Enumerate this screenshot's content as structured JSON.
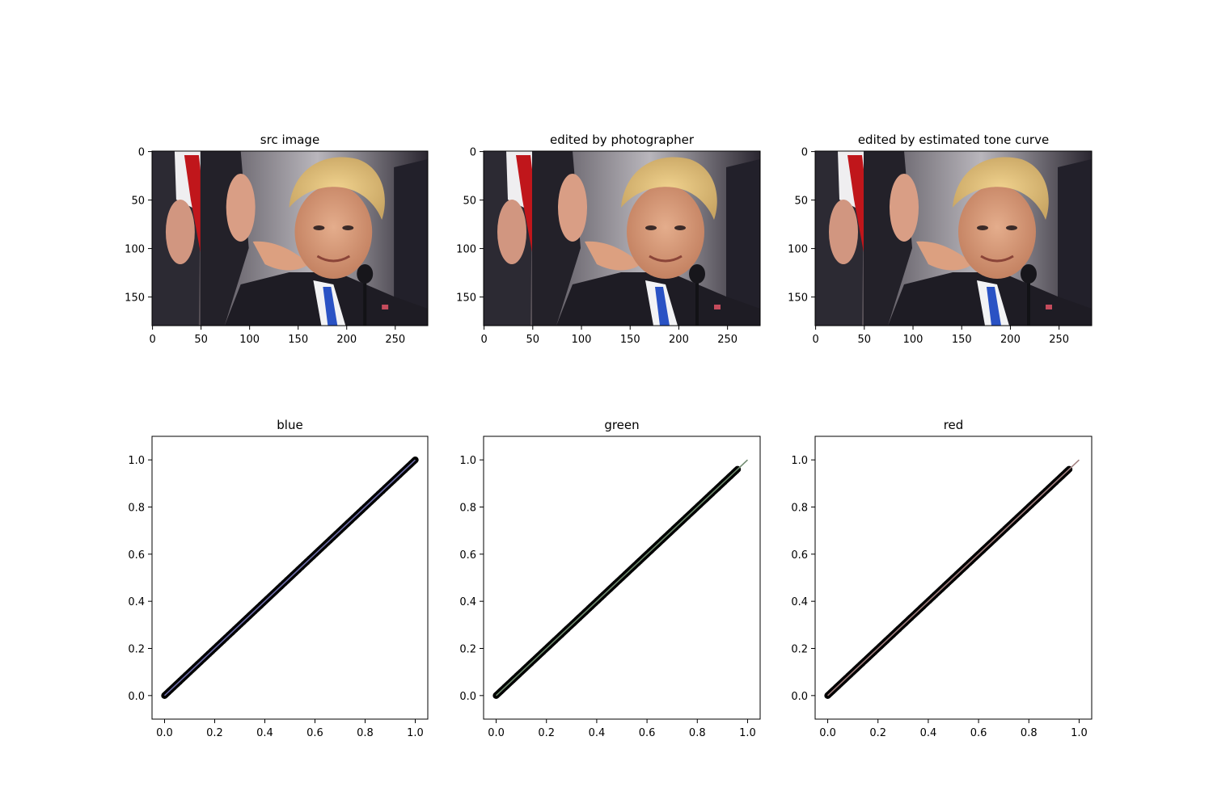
{
  "chart_data": [
    {
      "type": "image",
      "title": "src image",
      "xticks": [
        "0",
        "50",
        "100",
        "150",
        "200",
        "250"
      ],
      "yticks": [
        "0",
        "50",
        "100",
        "150"
      ],
      "xlim": [
        -0.5,
        283.5
      ],
      "ylim": [
        179.5,
        -0.5
      ],
      "content": "photo"
    },
    {
      "type": "image",
      "title": "edited by photographer",
      "xticks": [
        "0",
        "50",
        "100",
        "150",
        "200",
        "250"
      ],
      "yticks": [
        "0",
        "50",
        "100",
        "150"
      ],
      "xlim": [
        -0.5,
        283.5
      ],
      "ylim": [
        179.5,
        -0.5
      ],
      "content": "photo"
    },
    {
      "type": "image",
      "title": "edited by estimated tone curve",
      "xticks": [
        "0",
        "50",
        "100",
        "150",
        "200",
        "250"
      ],
      "yticks": [
        "0",
        "50",
        "100",
        "150"
      ],
      "xlim": [
        -0.5,
        283.5
      ],
      "ylim": [
        179.5,
        -0.5
      ],
      "content": "photo"
    },
    {
      "type": "scatter",
      "title": "blue",
      "xlim": [
        -0.05,
        1.05
      ],
      "ylim": [
        -0.1,
        1.1
      ],
      "xticks": [
        "0.0",
        "0.2",
        "0.4",
        "0.6",
        "0.8",
        "1.0"
      ],
      "yticks": [
        "0.0",
        "0.2",
        "0.4",
        "0.6",
        "0.8",
        "1.0"
      ],
      "line_color": "#6f6faa",
      "scatter_color": "#000000",
      "curve": {
        "x": [
          0,
          1
        ],
        "y": [
          0,
          1
        ]
      },
      "scatter_range": [
        0,
        1
      ]
    },
    {
      "type": "scatter",
      "title": "green",
      "xlim": [
        -0.05,
        1.05
      ],
      "ylim": [
        -0.1,
        1.1
      ],
      "xticks": [
        "0.0",
        "0.2",
        "0.4",
        "0.6",
        "0.8",
        "1.0"
      ],
      "yticks": [
        "0.0",
        "0.2",
        "0.4",
        "0.6",
        "0.8",
        "1.0"
      ],
      "line_color": "#6f8a6f",
      "scatter_color": "#000000",
      "curve": {
        "x": [
          0,
          1
        ],
        "y": [
          0,
          1
        ]
      },
      "scatter_range": [
        0,
        0.96
      ]
    },
    {
      "type": "scatter",
      "title": "red",
      "xlim": [
        -0.05,
        1.05
      ],
      "ylim": [
        -0.1,
        1.1
      ],
      "xticks": [
        "0.0",
        "0.2",
        "0.4",
        "0.6",
        "0.8",
        "1.0"
      ],
      "yticks": [
        "0.0",
        "0.2",
        "0.4",
        "0.6",
        "0.8",
        "1.0"
      ],
      "line_color": "#a07f7f",
      "scatter_color": "#000000",
      "curve": {
        "x": [
          0,
          1
        ],
        "y": [
          0,
          1
        ]
      },
      "scatter_range": [
        0,
        0.96
      ]
    }
  ]
}
